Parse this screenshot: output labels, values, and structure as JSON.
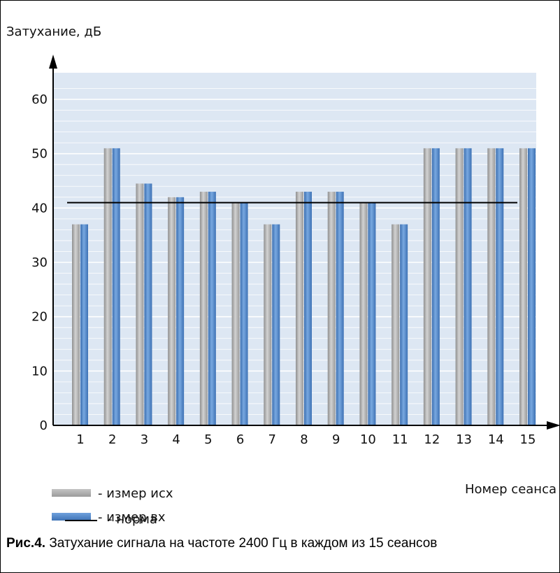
{
  "chart_data": {
    "type": "bar",
    "ylabel": "Затухание, дБ",
    "xlabel": "Номер сеанса",
    "categories": [
      "1",
      "2",
      "3",
      "4",
      "5",
      "6",
      "7",
      "8",
      "9",
      "10",
      "11",
      "12",
      "13",
      "14",
      "15"
    ],
    "series": [
      {
        "name": "- измер исх",
        "color": "#a9a9a9",
        "values": [
          37,
          51,
          44.5,
          42,
          43,
          41,
          37,
          43,
          43,
          41,
          37,
          51,
          51,
          51,
          51
        ]
      },
      {
        "name": "- измер вх",
        "color": "#4f86c9",
        "values": [
          37,
          51,
          44.5,
          42,
          43,
          41,
          37,
          43,
          43,
          41,
          37,
          51,
          51,
          51,
          51
        ]
      }
    ],
    "reference_line": {
      "name": "- норма",
      "value": 41,
      "color": "#000000"
    },
    "yticks": [
      "0",
      "10",
      "20",
      "30",
      "40",
      "50",
      "60"
    ],
    "ylim": [
      0,
      64
    ],
    "grid": true,
    "legend_position": "bottom-left",
    "plot_background": "#dde7f3",
    "grid_color": "#ffffff"
  },
  "legend": {
    "item1": "- измер исх",
    "item2": "- измер вх",
    "item3": "- норма"
  },
  "caption": {
    "bold": "Рис.4.",
    "text": " Затухание сигнала на частоте 2400 Гц в каждом из 15 сеансов"
  }
}
